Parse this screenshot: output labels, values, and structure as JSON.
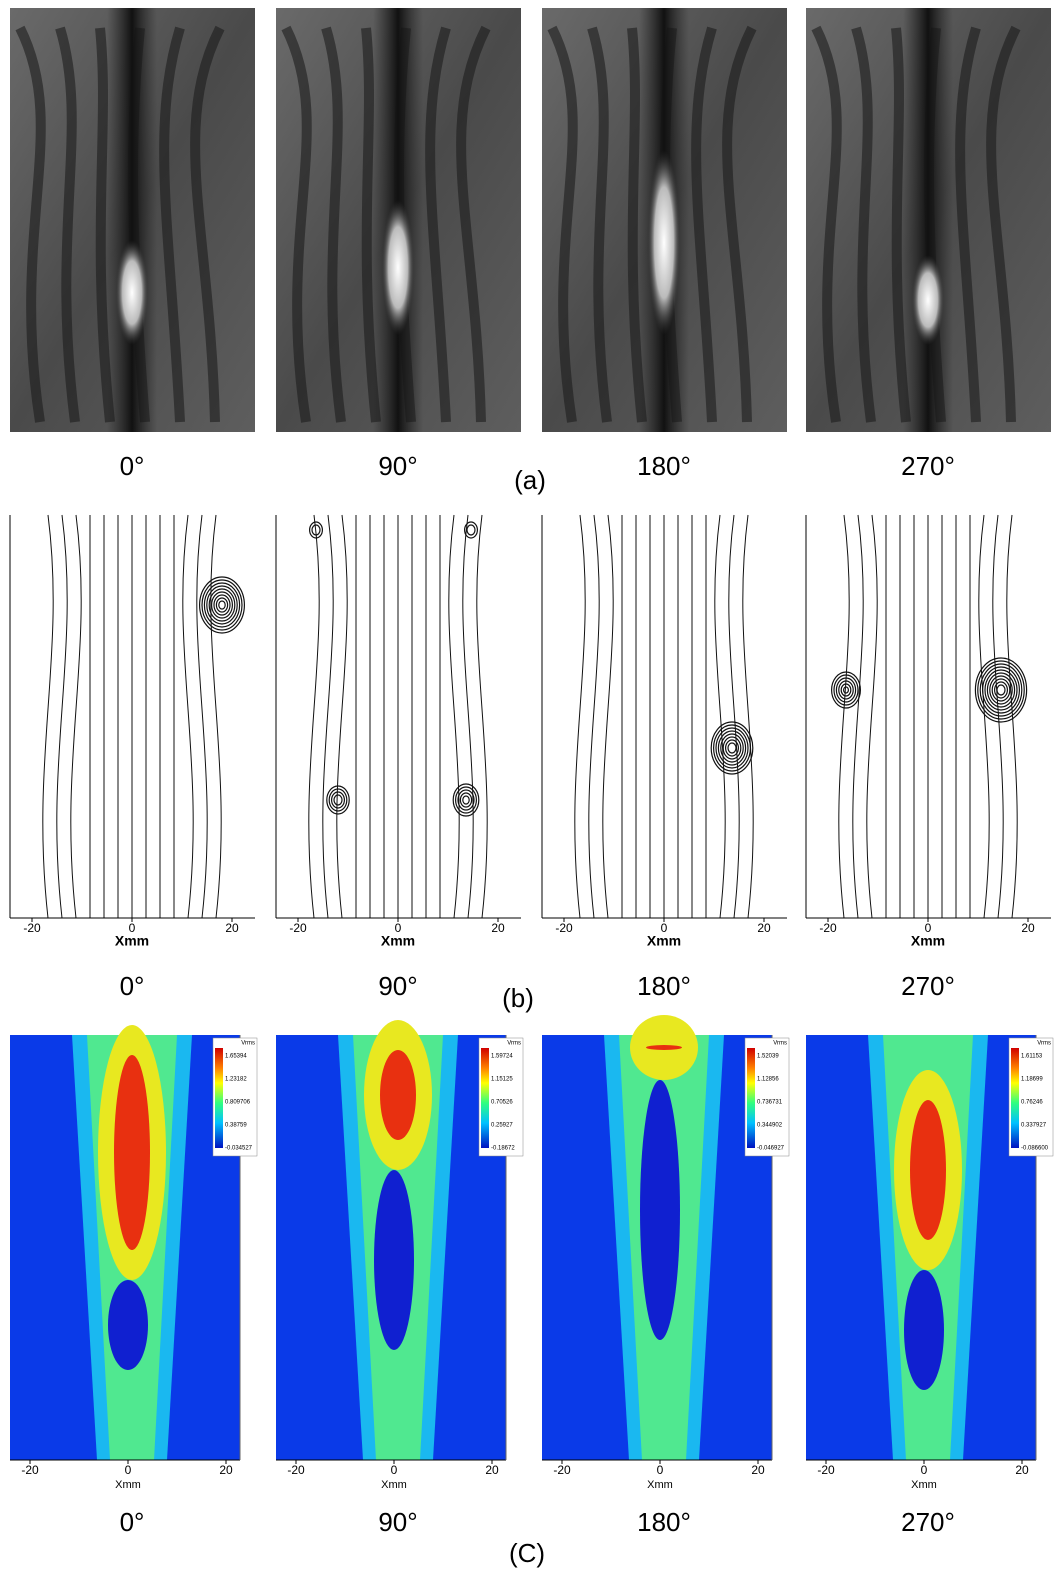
{
  "rows": [
    {
      "label": "(a)",
      "panels": [
        {
          "phase": "0°"
        },
        {
          "phase": "90°"
        },
        {
          "phase": "180°"
        },
        {
          "phase": "270°"
        }
      ]
    },
    {
      "label": "(b)",
      "panels": [
        {
          "phase": "0°",
          "x_axis": {
            "title": "Xmm",
            "ticks": [
              "-20",
              "0",
              "20"
            ]
          }
        },
        {
          "phase": "90°",
          "x_axis": {
            "title": "Xmm",
            "ticks": [
              "-20",
              "0",
              "20"
            ]
          }
        },
        {
          "phase": "180°",
          "x_axis": {
            "title": "Xmm",
            "ticks": [
              "-20",
              "0",
              "20"
            ]
          }
        },
        {
          "phase": "270°",
          "x_axis": {
            "title": "Xmm",
            "ticks": [
              "-20",
              "0",
              "20"
            ]
          }
        }
      ]
    },
    {
      "label": "(C)",
      "panels": [
        {
          "phase": "0°",
          "x_axis": {
            "title": "Xmm",
            "ticks": [
              "-20",
              "0",
              "20"
            ]
          },
          "colorbar": {
            "title": "Vrms",
            "labels": [
              "1.65394",
              "1.23182",
              "0.809706",
              "0.38759",
              "-0.034527"
            ]
          }
        },
        {
          "phase": "90°",
          "x_axis": {
            "title": "Xmm",
            "ticks": [
              "-20",
              "0",
              "20"
            ]
          },
          "colorbar": {
            "title": "Vrms",
            "labels": [
              "1.59724",
              "1.15125",
              "0.70526",
              "0.25927",
              "-0.18672"
            ]
          }
        },
        {
          "phase": "180°",
          "x_axis": {
            "title": "Xmm",
            "ticks": [
              "-20",
              "0",
              "20"
            ]
          },
          "colorbar": {
            "title": "Vrms",
            "labels": [
              "1.52039",
              "1.12856",
              "0.736731",
              "0.344902",
              "-0.046927"
            ]
          }
        },
        {
          "phase": "270°",
          "x_axis": {
            "title": "Xmm",
            "ticks": [
              "-20",
              "0",
              "20"
            ]
          },
          "colorbar": {
            "title": "Vrms",
            "labels": [
              "1.61153",
              "1.18699",
              "0.76246",
              "0.337927",
              "-0.086600"
            ]
          }
        }
      ]
    }
  ]
}
